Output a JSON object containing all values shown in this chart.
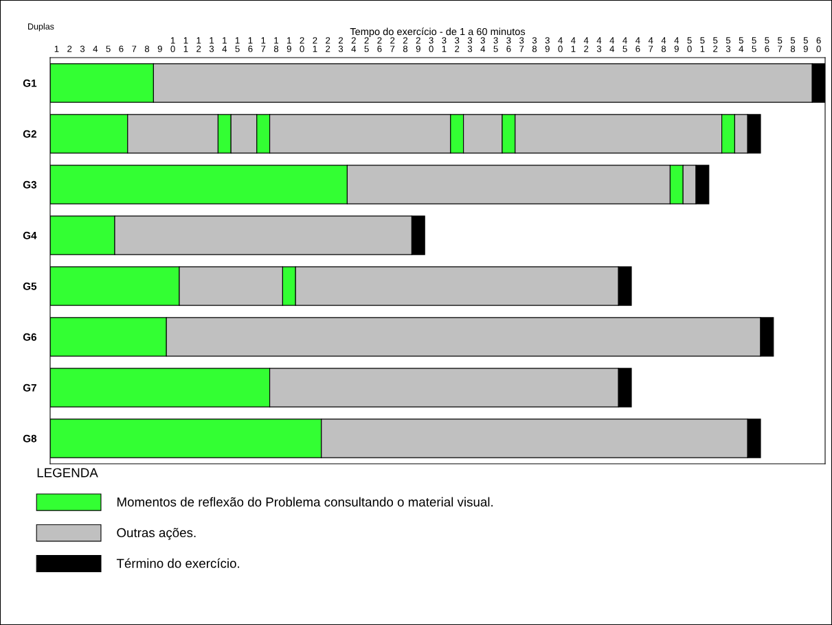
{
  "chart_data": {
    "type": "bar",
    "orientation": "horizontal",
    "xlabel": "Tempo do exercício - de 1 a 60 minutos",
    "ylabel": "Duplas",
    "legend_title": "LEGENDA",
    "legend": "bottom",
    "categories": [
      "G1",
      "G2",
      "G3",
      "G4",
      "G5",
      "G6",
      "G7",
      "G8"
    ],
    "xlim": [
      0,
      60
    ],
    "xticks": [
      {
        "value": 0.5,
        "label": "1"
      },
      {
        "value": 1.5,
        "label": "2"
      },
      {
        "value": 2.5,
        "label": "3"
      },
      {
        "value": 3.5,
        "label": "4"
      },
      {
        "value": 4.5,
        "label": "5"
      },
      {
        "value": 5.5,
        "label": "6"
      },
      {
        "value": 6.5,
        "label": "7"
      },
      {
        "value": 7.5,
        "label": "8"
      },
      {
        "value": 8.5,
        "label": "9"
      },
      {
        "value": 9.5,
        "label": "10"
      },
      {
        "value": 10.5,
        "label": "11"
      },
      {
        "value": 11.5,
        "label": "12"
      },
      {
        "value": 12.5,
        "label": "13"
      },
      {
        "value": 13.5,
        "label": "14"
      },
      {
        "value": 14.5,
        "label": "15"
      },
      {
        "value": 15.5,
        "label": "16"
      },
      {
        "value": 16.5,
        "label": "17"
      },
      {
        "value": 17.5,
        "label": "18"
      },
      {
        "value": 18.5,
        "label": "19"
      },
      {
        "value": 19.5,
        "label": "20"
      },
      {
        "value": 20.5,
        "label": "21"
      },
      {
        "value": 21.5,
        "label": "22"
      },
      {
        "value": 22.5,
        "label": "23"
      },
      {
        "value": 23.5,
        "label": "24"
      },
      {
        "value": 24.5,
        "label": "25"
      },
      {
        "value": 25.5,
        "label": "26"
      },
      {
        "value": 26.5,
        "label": "27"
      },
      {
        "value": 27.5,
        "label": "28"
      },
      {
        "value": 28.5,
        "label": "29"
      },
      {
        "value": 29.5,
        "label": "30"
      },
      {
        "value": 30.5,
        "label": "31"
      },
      {
        "value": 31.5,
        "label": "32"
      },
      {
        "value": 32.5,
        "label": "33"
      },
      {
        "value": 33.5,
        "label": "34"
      },
      {
        "value": 34.5,
        "label": "35"
      },
      {
        "value": 35.5,
        "label": "36"
      },
      {
        "value": 36.5,
        "label": "37"
      },
      {
        "value": 37.5,
        "label": "38"
      },
      {
        "value": 38.5,
        "label": "39"
      },
      {
        "value": 39.5,
        "label": "40"
      },
      {
        "value": 40.5,
        "label": "41"
      },
      {
        "value": 41.5,
        "label": "42"
      },
      {
        "value": 42.5,
        "label": "43"
      },
      {
        "value": 43.5,
        "label": "44"
      },
      {
        "value": 44.5,
        "label": "45"
      },
      {
        "value": 45.5,
        "label": "46"
      },
      {
        "value": 46.5,
        "label": "47"
      },
      {
        "value": 47.5,
        "label": "48"
      },
      {
        "value": 48.5,
        "label": "49"
      },
      {
        "value": 49.5,
        "label": "50"
      },
      {
        "value": 50.5,
        "label": "51"
      },
      {
        "value": 51.5,
        "label": "52"
      },
      {
        "value": 52.5,
        "label": "53"
      },
      {
        "value": 53.5,
        "label": "54"
      },
      {
        "value": 54.5,
        "label": "55"
      },
      {
        "value": 55.5,
        "label": "56"
      },
      {
        "value": 56.5,
        "label": "57"
      },
      {
        "value": 57.5,
        "label": "58"
      },
      {
        "value": 58.5,
        "label": "59"
      },
      {
        "value": 59.5,
        "label": "60"
      }
    ],
    "series": [
      {
        "name": "Momentos de reflexão do Problema consultando o material visual.",
        "color": "#33ff33",
        "base": [
          0,
          0,
          0,
          0,
          0,
          0,
          0,
          0
        ],
        "values": [
          8,
          6,
          23,
          5,
          10,
          9,
          17,
          21
        ]
      },
      {
        "name": "Outras ações.",
        "color": "#c0c0c0",
        "base": [
          8,
          6,
          23,
          5,
          10,
          9,
          17,
          21
        ],
        "values": [
          51,
          7,
          25,
          23,
          8,
          46,
          27,
          33
        ]
      },
      {
        "color": "#33ff33",
        "base": [
          null,
          13,
          48,
          null,
          18,
          null,
          null,
          null
        ],
        "values": [
          null,
          1,
          1,
          null,
          1,
          null,
          null,
          null
        ]
      },
      {
        "color": "#c0c0c0",
        "base": [
          null,
          14,
          49,
          null,
          19,
          null,
          null,
          null
        ],
        "values": [
          null,
          2,
          1,
          null,
          25,
          null,
          null,
          null
        ]
      },
      {
        "color": "#33ff33",
        "base": [
          null,
          16,
          null,
          null,
          null,
          null,
          null,
          null
        ],
        "values": [
          null,
          1,
          null,
          null,
          null,
          null,
          null,
          null
        ]
      },
      {
        "color": "#c0c0c0",
        "base": [
          null,
          17,
          null,
          null,
          null,
          null,
          null,
          null
        ],
        "values": [
          null,
          14,
          null,
          null,
          null,
          null,
          null,
          null
        ]
      },
      {
        "color": "#33ff33",
        "base": [
          null,
          31,
          null,
          null,
          null,
          null,
          null,
          null
        ],
        "values": [
          null,
          1,
          null,
          null,
          null,
          null,
          null,
          null
        ]
      },
      {
        "color": "#c0c0c0",
        "base": [
          null,
          32,
          null,
          null,
          null,
          null,
          null,
          null
        ],
        "values": [
          null,
          3,
          null,
          null,
          null,
          null,
          null,
          null
        ]
      },
      {
        "color": "#33ff33",
        "base": [
          null,
          35,
          null,
          null,
          null,
          null,
          null,
          null
        ],
        "values": [
          null,
          1,
          null,
          null,
          null,
          null,
          null,
          null
        ]
      },
      {
        "color": "#c0c0c0",
        "base": [
          null,
          36,
          null,
          null,
          null,
          null,
          null,
          null
        ],
        "values": [
          null,
          16,
          null,
          null,
          null,
          null,
          null,
          null
        ]
      },
      {
        "color": "#33ff33",
        "base": [
          null,
          52,
          null,
          null,
          null,
          null,
          null,
          null
        ],
        "values": [
          null,
          1,
          null,
          null,
          null,
          null,
          null,
          null
        ]
      },
      {
        "color": "#c0c0c0",
        "base": [
          null,
          53,
          null,
          null,
          null,
          null,
          null,
          null
        ],
        "values": [
          null,
          1,
          null,
          null,
          null,
          null,
          null,
          null
        ]
      },
      {
        "name": "Término do exercício.",
        "color": "#000000",
        "base": [
          59,
          54,
          50,
          28,
          44,
          55,
          44,
          54
        ],
        "values": [
          1,
          1,
          1,
          1,
          1,
          1,
          1,
          1
        ]
      }
    ]
  }
}
